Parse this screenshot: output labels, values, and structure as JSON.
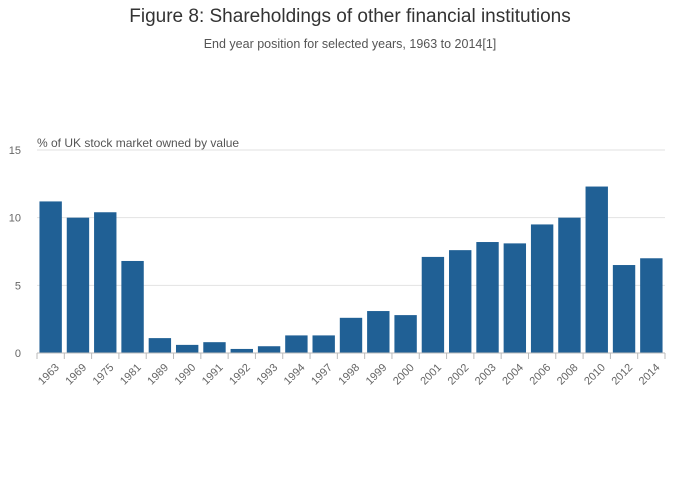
{
  "chart_data": {
    "type": "bar",
    "title": "Figure 8: Shareholdings of other financial institutions",
    "subtitle": "End year position for selected years, 1963 to 2014[1]",
    "ylabel": "% of UK stock market owned by value",
    "xlabel": "",
    "ylim": [
      0,
      15
    ],
    "yticks": [
      "0",
      "5",
      "10",
      "15"
    ],
    "categories": [
      "1963",
      "1969",
      "1975",
      "1981",
      "1989",
      "1990",
      "1991",
      "1992",
      "1993",
      "1994",
      "1997",
      "1998",
      "1999",
      "2000",
      "2001",
      "2002",
      "2003",
      "2004",
      "2006",
      "2008",
      "2010",
      "2012",
      "2014"
    ],
    "values": [
      11.2,
      10.0,
      10.4,
      6.8,
      1.1,
      0.6,
      0.8,
      0.3,
      0.5,
      1.3,
      1.3,
      2.6,
      3.1,
      2.8,
      7.1,
      7.6,
      8.2,
      8.1,
      9.5,
      10.0,
      12.3,
      6.5,
      7.0
    ],
    "bar_color": "#206095",
    "grid": true,
    "legend": "none"
  }
}
